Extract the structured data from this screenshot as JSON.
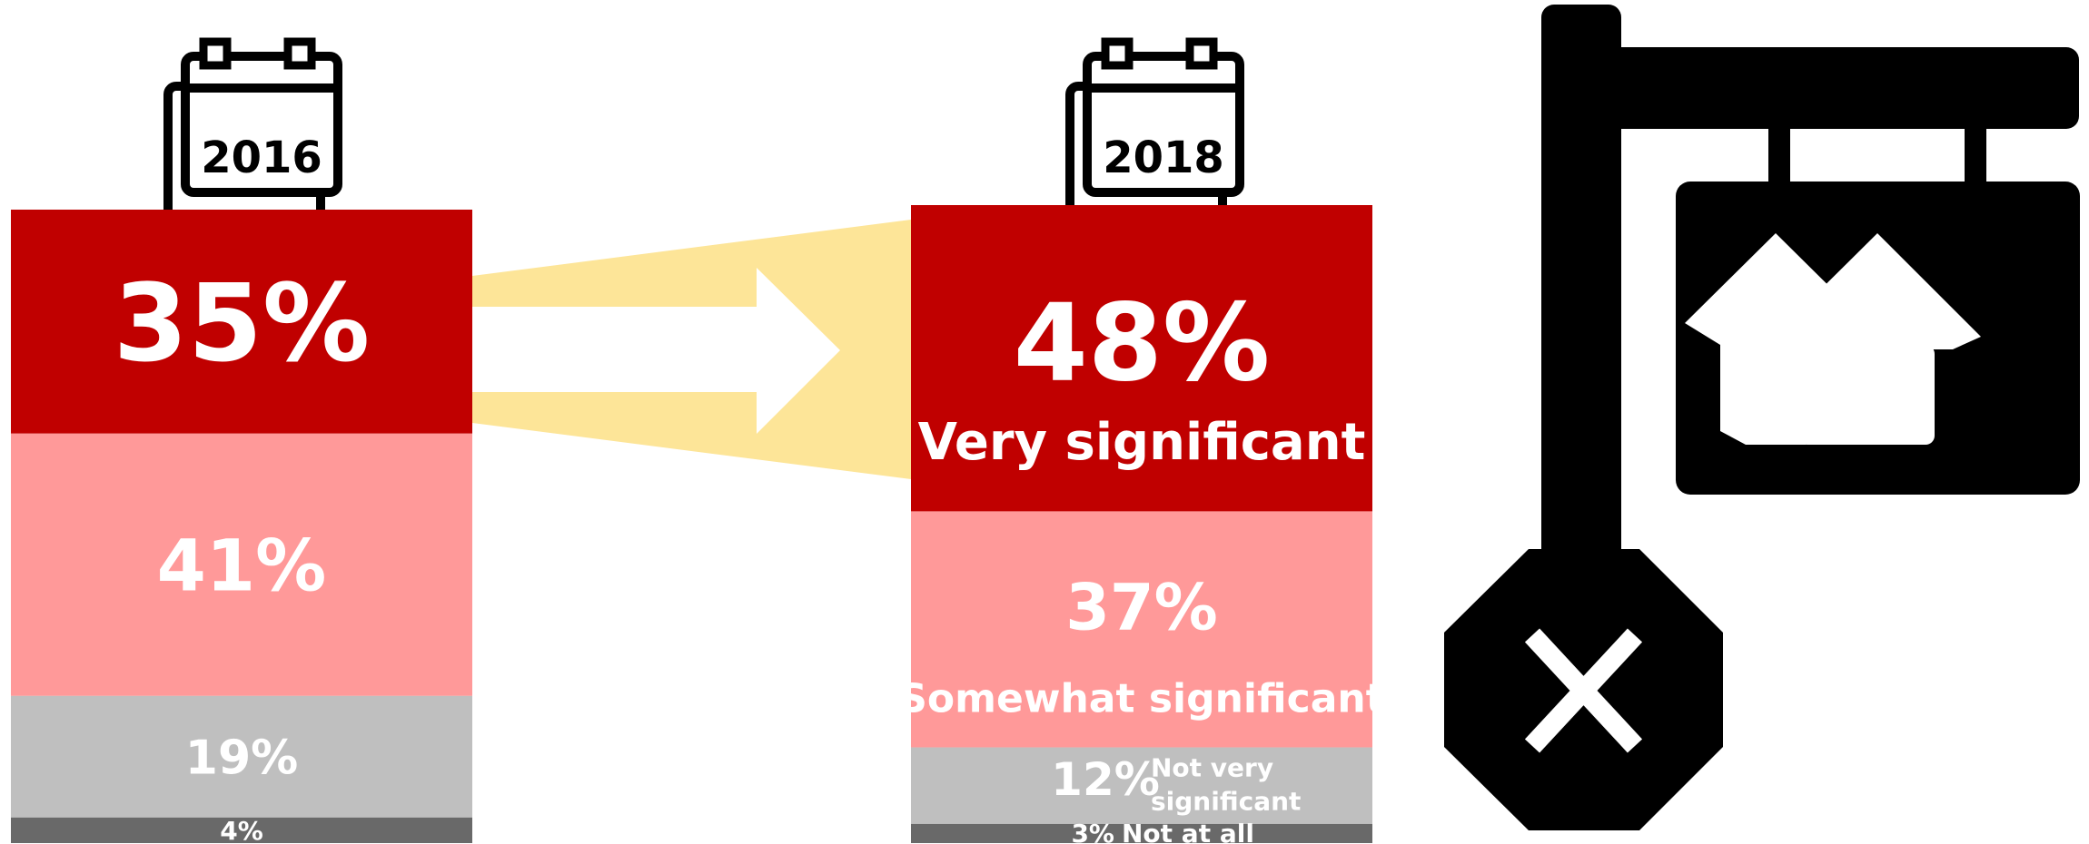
{
  "chart_data": {
    "type": "bar",
    "subtype": "stacked-100",
    "categories": [
      "2016",
      "2018"
    ],
    "series": [
      {
        "name": "Very significant",
        "values": [
          35,
          48
        ],
        "color": "#c00000"
      },
      {
        "name": "Somewhat significant",
        "values": [
          41,
          37
        ],
        "color": "#ff9999"
      },
      {
        "name": "Not very significant",
        "values": [
          19,
          12
        ],
        "color": "#bfbfbf"
      },
      {
        "name": "Not at all",
        "values": [
          4,
          3
        ],
        "color": "#696969"
      }
    ],
    "data_labels": [
      [
        "35%",
        "41%",
        "19%",
        "4%"
      ],
      [
        "48%",
        "37%",
        "12%",
        "3%"
      ]
    ],
    "legend": "inline labels on 2018 column",
    "grid": false,
    "arrow_color": "#fde598",
    "icons": [
      "calendar-icon",
      "calendar-icon",
      "real-estate-sign-icon",
      "stop-sign-x-icon"
    ]
  }
}
